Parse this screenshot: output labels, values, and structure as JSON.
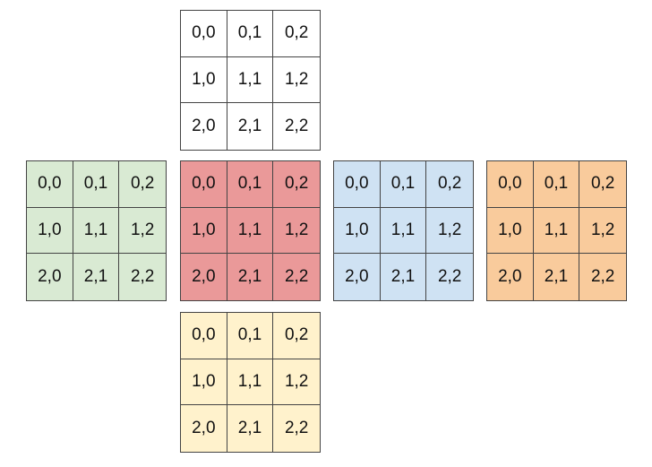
{
  "faces": [
    {
      "id": "top",
      "color": "#ffffff",
      "cells": [
        "0,0",
        "0,1",
        "0,2",
        "1,0",
        "1,1",
        "1,2",
        "2,0",
        "2,1",
        "2,2"
      ]
    },
    {
      "id": "left",
      "color": "#d9ead3",
      "cells": [
        "0,0",
        "0,1",
        "0,2",
        "1,0",
        "1,1",
        "1,2",
        "2,0",
        "2,1",
        "2,2"
      ]
    },
    {
      "id": "front",
      "color": "#ea9999",
      "cells": [
        "0,0",
        "0,1",
        "0,2",
        "1,0",
        "1,1",
        "1,2",
        "2,0",
        "2,1",
        "2,2"
      ]
    },
    {
      "id": "right",
      "color": "#cfe2f3",
      "cells": [
        "0,0",
        "0,1",
        "0,2",
        "1,0",
        "1,1",
        "1,2",
        "2,0",
        "2,1",
        "2,2"
      ]
    },
    {
      "id": "back",
      "color": "#f9cb9c",
      "cells": [
        "0,0",
        "0,1",
        "0,2",
        "1,0",
        "1,1",
        "1,2",
        "2,0",
        "2,1",
        "2,2"
      ]
    },
    {
      "id": "bottom",
      "color": "#fff2cc",
      "cells": [
        "0,0",
        "0,1",
        "0,2",
        "1,0",
        "1,1",
        "1,2",
        "2,0",
        "2,1",
        "2,2"
      ]
    }
  ]
}
